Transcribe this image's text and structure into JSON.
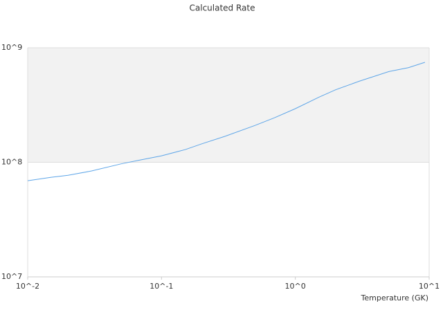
{
  "chart_data": {
    "type": "line",
    "title": "Calculated Rate",
    "x_label": "Temperature (GK)",
    "x": [
      0.01,
      0.015,
      0.02,
      0.03,
      0.05,
      0.07,
      0.1,
      0.15,
      0.2,
      0.3,
      0.5,
      0.7,
      1,
      1.5,
      2,
      3,
      5,
      7,
      9.3
    ],
    "series": [
      {
        "color": "#5da5e8",
        "values": [
          69000000,
          74000000,
          77000000,
          84000000,
          97000000,
          105000000,
          114000000,
          129000000,
          145000000,
          169000000,
          210000000,
          245000000,
          294000000,
          370000000,
          430000000,
          510000000,
          620000000,
          670000000,
          747000000
        ]
      }
    ],
    "xlim": [
      0.01,
      10
    ],
    "ylim": [
      10000000,
      1000000000
    ],
    "xticks": [
      {
        "value": 0.01,
        "label": "10^-2"
      },
      {
        "value": 0.1,
        "label": "10^-1"
      },
      {
        "value": 1,
        "label": "10^0"
      },
      {
        "value": 10,
        "label": "10^1"
      }
    ],
    "yticks": [
      {
        "value": 10000000,
        "label": "10^7"
      },
      {
        "value": 100000000,
        "label": "10^8"
      },
      {
        "value": 1000000000,
        "label": "10^9"
      }
    ],
    "xscale": "log",
    "yscale": "log",
    "grid": true,
    "band_color": "#f2f2f2"
  }
}
